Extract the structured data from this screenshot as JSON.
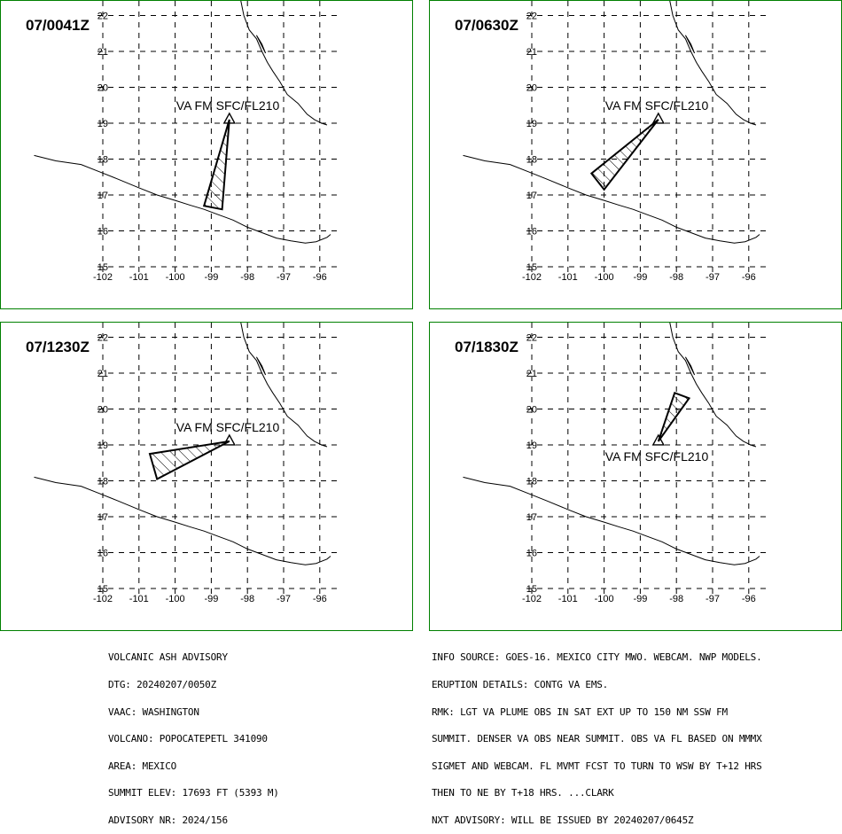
{
  "panels": [
    {
      "time": "07/0041Z",
      "va_label": "VA FM SFC/FL210",
      "label_pos": "above",
      "polygon": [
        [
          -98.5,
          19.1
        ],
        [
          -99.2,
          16.7
        ],
        [
          -98.7,
          16.6
        ]
      ]
    },
    {
      "time": "07/0630Z",
      "va_label": "VA FM SFC/FL210",
      "label_pos": "above",
      "polygon": [
        [
          -98.5,
          19.1
        ],
        [
          -100.35,
          17.6
        ],
        [
          -100.0,
          17.15
        ]
      ]
    },
    {
      "time": "07/1230Z",
      "va_label": "VA FM SFC/FL210",
      "label_pos": "above",
      "polygon": [
        [
          -98.5,
          19.1
        ],
        [
          -100.7,
          18.75
        ],
        [
          -100.5,
          18.05
        ]
      ]
    },
    {
      "time": "07/1830Z",
      "va_label": "VA FM SFC/FL210",
      "label_pos": "below",
      "polygon": [
        [
          -98.5,
          19.1
        ],
        [
          -98.05,
          20.45
        ],
        [
          -97.65,
          20.3
        ]
      ]
    }
  ],
  "axes": {
    "lon_ticks": [
      "-102",
      "-101",
      "-100",
      "-99",
      "-98",
      "-97",
      "-96"
    ],
    "lat_ticks": [
      "15",
      "16",
      "17",
      "18",
      "19",
      "20",
      "21",
      "22"
    ],
    "lon_range": [
      -102,
      -95.7
    ],
    "lat_range": [
      15,
      22
    ]
  },
  "volcano": {
    "lon": -98.5,
    "lat": 19.1,
    "symbol": "triangle-icon"
  },
  "advisory_left": [
    "VOLCANIC ASH ADVISORY",
    "DTG: 20240207/0050Z",
    "VAAC: WASHINGTON",
    "VOLCANO: POPOCATEPETL 341090",
    "AREA: MEXICO",
    "SUMMIT ELEV: 17693 FT (5393 M)",
    "ADVISORY NR: 2024/156"
  ],
  "advisory_right": [
    "INFO SOURCE: GOES-16. MEXICO CITY MWO. WEBCAM. NWP MODELS.",
    "ERUPTION DETAILS: CONTG VA EMS.",
    "RMK: LGT VA PLUME OBS IN SAT EXT UP TO 150 NM SSW FM",
    "SUMMIT. DENSER VA OBS NEAR SUMMIT. OBS VA FL BASED ON MMMX",
    "SIGMET AND WEBCAM. FL MVMT FCST TO TURN TO WSW BY T+12 HRS",
    "THEN TO NE BY T+18 HRS. ...CLARK",
    "NXT ADVISORY: WILL BE ISSUED BY 20240207/0645Z"
  ],
  "colors": {
    "frame": "#008000",
    "lines": "#000000",
    "background": "#ffffff"
  }
}
